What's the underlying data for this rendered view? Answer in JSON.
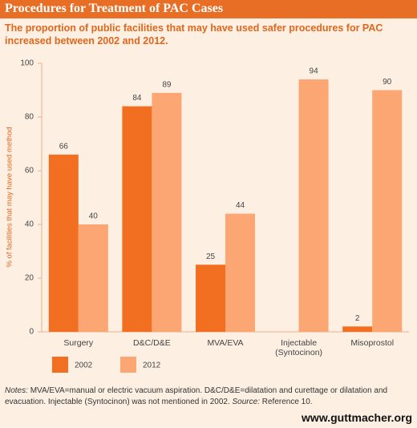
{
  "header": {
    "title": "Procedures for Treatment of PAC Cases",
    "subtitle": "The proportion of public facilities that may have used safer procedures for PAC increased between 2002 and 2012."
  },
  "chart_data": {
    "type": "bar",
    "y_label": "% of facilities that may have used method",
    "categories": [
      "Surgery",
      "D&C/D&E",
      "MVA/EVA",
      "Injectable (Syntocinon)",
      "Misoprostol"
    ],
    "series": [
      {
        "name": "2002",
        "color": "#f26f21",
        "values": [
          66,
          84,
          25,
          null,
          2
        ]
      },
      {
        "name": "2012",
        "color": "#fba673",
        "values": [
          40,
          89,
          44,
          94,
          90
        ]
      }
    ],
    "ylim": [
      0,
      100
    ],
    "yticks": [
      0,
      20,
      40,
      60,
      80,
      100
    ]
  },
  "notes": {
    "label": "Notes:",
    "text": "MVA/EVA=manual or electric vacuum aspiration. D&C/D&E=dilatation and curettage or dilatation and evacuation. Injectable (Syntocinon) was not mentioned in 2002.",
    "source_label": "Source:",
    "source_text": "Reference 10."
  },
  "footer": "www.guttmacher.org"
}
